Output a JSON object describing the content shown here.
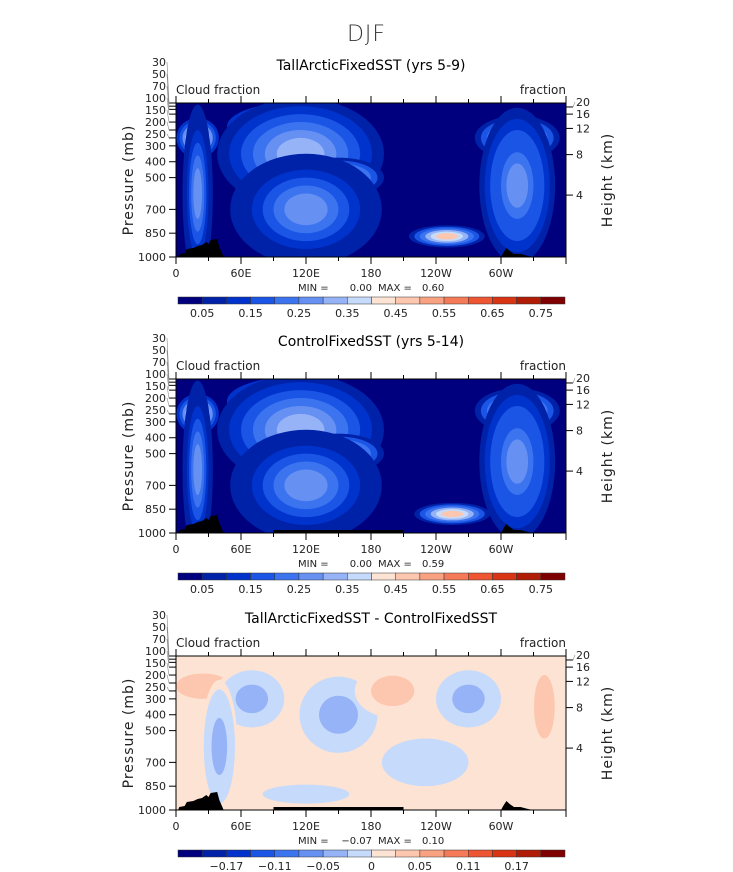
{
  "title": "DJF",
  "chart_data": [
    {
      "type": "heatmap",
      "title": "TallArcticFixedSST (yrs 5-9)",
      "left_label": "Cloud fraction",
      "right_label": "fraction",
      "ylabel": "Pressure (mb)",
      "y2label": "Height (km)",
      "xticks": [
        "0",
        "60E",
        "120E",
        "180",
        "120W",
        "60W"
      ],
      "yticks": [
        30,
        50,
        70,
        100,
        150,
        200,
        250,
        300,
        400,
        500,
        700,
        850,
        1000
      ],
      "y2ticks": [
        20,
        16,
        12,
        8,
        4
      ],
      "stats": {
        "min_label": "MIN =",
        "min": "0.00",
        "max_label": "MAX =",
        "max": "0.60"
      },
      "colorbar": {
        "levels": [
          0.0,
          0.05,
          0.1,
          0.15,
          0.2,
          0.25,
          0.3,
          0.35,
          0.4,
          0.45,
          0.5,
          0.55,
          0.6,
          0.65,
          0.7,
          0.75,
          0.8
        ],
        "labels": [
          "0.05",
          "0.15",
          "0.25",
          "0.35",
          "0.45",
          "0.55",
          "0.65",
          "0.75"
        ]
      },
      "features": [
        {
          "lon": 20,
          "p": 250,
          "value": 0.55,
          "dlon": 14,
          "dp": 90
        },
        {
          "lon": 20,
          "p": 600,
          "value": 0.25,
          "dlon": 10,
          "dp": 400
        },
        {
          "lon": 110,
          "p": 180,
          "value": 0.55,
          "dlon": 45,
          "dp": 110
        },
        {
          "lon": 115,
          "p": 350,
          "value": 0.3,
          "dlon": 55,
          "dp": 250
        },
        {
          "lon": 150,
          "p": 500,
          "value": 0.42,
          "dlon": 30,
          "dp": 90
        },
        {
          "lon": 120,
          "p": 700,
          "value": 0.25,
          "dlon": 50,
          "dp": 250
        },
        {
          "lon": 250,
          "p": 870,
          "value": 0.45,
          "dlon": 25,
          "dp": 50
        },
        {
          "lon": 315,
          "p": 250,
          "value": 0.42,
          "dlon": 28,
          "dp": 100
        },
        {
          "lon": 315,
          "p": 550,
          "value": 0.28,
          "dlon": 25,
          "dp": 350
        }
      ]
    },
    {
      "type": "heatmap",
      "title": "ControlFixedSST (yrs 5-14)",
      "left_label": "Cloud fraction",
      "right_label": "fraction",
      "ylabel": "Pressure (mb)",
      "y2label": "Height (km)",
      "xticks": [
        "0",
        "60E",
        "120E",
        "180",
        "120W",
        "60W"
      ],
      "yticks": [
        30,
        50,
        70,
        100,
        150,
        200,
        250,
        300,
        400,
        500,
        700,
        850,
        1000
      ],
      "y2ticks": [
        20,
        16,
        12,
        8,
        4
      ],
      "stats": {
        "min_label": "MIN =",
        "min": "0.00",
        "max_label": "MAX =",
        "max": "0.59"
      },
      "colorbar": {
        "levels": [
          0.0,
          0.05,
          0.1,
          0.15,
          0.2,
          0.25,
          0.3,
          0.35,
          0.4,
          0.45,
          0.5,
          0.55,
          0.6,
          0.65,
          0.7,
          0.75,
          0.8
        ],
        "labels": [
          "0.05",
          "0.15",
          "0.25",
          "0.35",
          "0.45",
          "0.55",
          "0.65",
          "0.75"
        ]
      },
      "features": [
        {
          "lon": 20,
          "p": 250,
          "value": 0.55,
          "dlon": 14,
          "dp": 90
        },
        {
          "lon": 20,
          "p": 600,
          "value": 0.25,
          "dlon": 10,
          "dp": 400
        },
        {
          "lon": 110,
          "p": 170,
          "value": 0.58,
          "dlon": 45,
          "dp": 110
        },
        {
          "lon": 115,
          "p": 350,
          "value": 0.3,
          "dlon": 55,
          "dp": 250
        },
        {
          "lon": 150,
          "p": 500,
          "value": 0.45,
          "dlon": 30,
          "dp": 90
        },
        {
          "lon": 120,
          "p": 700,
          "value": 0.25,
          "dlon": 50,
          "dp": 250
        },
        {
          "lon": 255,
          "p": 880,
          "value": 0.45,
          "dlon": 25,
          "dp": 50
        },
        {
          "lon": 315,
          "p": 230,
          "value": 0.42,
          "dlon": 28,
          "dp": 100
        },
        {
          "lon": 315,
          "p": 550,
          "value": 0.28,
          "dlon": 25,
          "dp": 350
        }
      ]
    },
    {
      "type": "heatmap",
      "title": "TallArcticFixedSST - ControlFixedSST",
      "left_label": "Cloud fraction",
      "right_label": "fraction",
      "ylabel": "Pressure (mb)",
      "y2label": "Height (km)",
      "xticks": [
        "0",
        "60E",
        "120E",
        "180",
        "120W",
        "60W"
      ],
      "yticks": [
        30,
        50,
        70,
        100,
        150,
        200,
        250,
        300,
        400,
        500,
        700,
        850,
        1000
      ],
      "y2ticks": [
        20,
        16,
        12,
        8,
        4
      ],
      "stats": {
        "min_label": "MIN =",
        "min": "−0.07",
        "max_label": "MAX =",
        "max": "0.10"
      },
      "colorbar": {
        "levels": [
          -0.23,
          -0.2,
          -0.17,
          -0.14,
          -0.11,
          -0.08,
          -0.05,
          -0.02,
          0,
          0.02,
          0.05,
          0.08,
          0.11,
          0.14,
          0.17,
          0.2,
          0.23
        ],
        "labels": [
          "−0.17",
          "−0.11",
          "−0.05",
          "0",
          "0.05",
          "0.11",
          "0.17"
        ]
      },
      "background_value": 0.01,
      "features": [
        {
          "lon": 25,
          "p": 220,
          "value": 0.04,
          "dlon": 25,
          "dp": 80
        },
        {
          "lon": 70,
          "p": 300,
          "value": -0.03,
          "dlon": 25,
          "dp": 150
        },
        {
          "lon": 150,
          "p": 400,
          "value": -0.03,
          "dlon": 30,
          "dp": 200
        },
        {
          "lon": 200,
          "p": 250,
          "value": 0.03,
          "dlon": 25,
          "dp": 120
        },
        {
          "lon": 270,
          "p": 300,
          "value": -0.03,
          "dlon": 25,
          "dp": 150
        },
        {
          "lon": 340,
          "p": 350,
          "value": 0.03,
          "dlon": 12,
          "dp": 250
        },
        {
          "lon": 40,
          "p": 600,
          "value": -0.03,
          "dlon": 12,
          "dp": 300
        },
        {
          "lon": 230,
          "p": 700,
          "value": -0.02,
          "dlon": 40,
          "dp": 150
        },
        {
          "lon": 120,
          "p": 900,
          "value": -0.02,
          "dlon": 40,
          "dp": 60
        }
      ]
    }
  ]
}
